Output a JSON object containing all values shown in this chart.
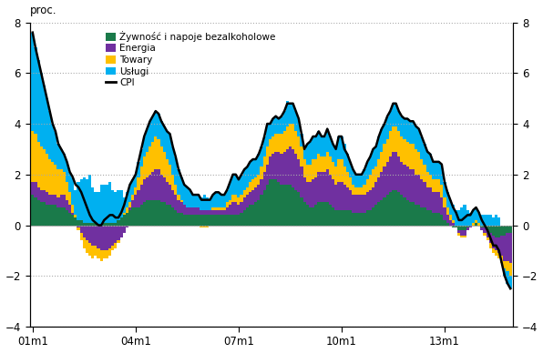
{
  "ylabel_left": "proc.",
  "ylim": [
    -4,
    8
  ],
  "yticks": [
    -4,
    -2,
    0,
    2,
    4,
    6,
    8
  ],
  "xtick_labels": [
    "01m1",
    "04m1",
    "07m1",
    "10m1",
    "13m1"
  ],
  "xtick_positions": [
    0,
    36,
    72,
    108,
    144
  ],
  "colors": {
    "zywnosc": "#1a7a4a",
    "energia": "#7030a0",
    "towary": "#ffc000",
    "uslugi": "#00b0f0",
    "cpi": "#000000"
  },
  "legend_labels": [
    "Żywność i napoje bezalkoholowe",
    "Energia",
    "Towary",
    "Usługi",
    "CPI"
  ],
  "background_color": "#ffffff",
  "grid_color": "#aaaaaa"
}
